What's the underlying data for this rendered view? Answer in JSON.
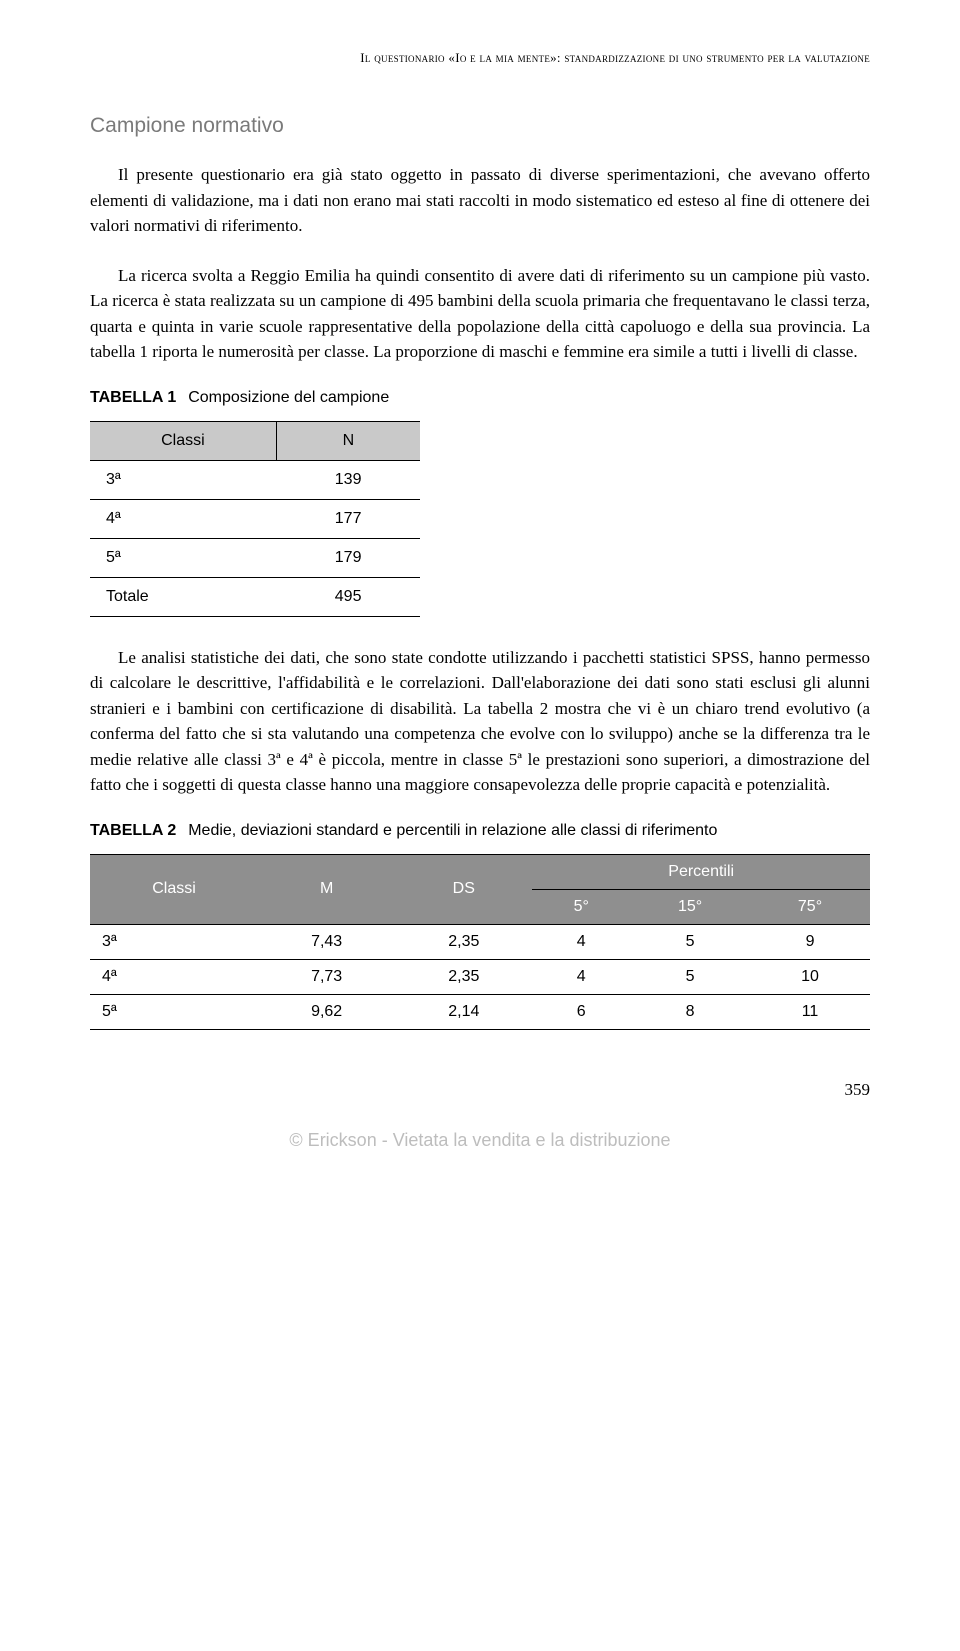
{
  "running_head": "Il questionario «Io e la mia mente»: standardizzazione di uno strumento per la valutazione",
  "section_heading": "Campione normativo",
  "para1": "Il presente questionario era già stato oggetto in passato di diverse sperimentazioni, che avevano offerto elementi di validazione, ma i dati non erano mai stati raccolti in modo sistematico ed esteso al fine di ottenere dei valori normativi di riferimento.",
  "para2": "La ricerca svolta a Reggio Emilia ha quindi consentito di avere dati di riferimento su un campione più vasto. La ricerca è stata realizzata su un campione di 495 bambini della scuola primaria che frequentavano le classi terza, quarta e quinta in varie scuole rappresentative della popolazione della città capoluogo e della sua provincia. La tabella 1 riporta le numerosità per classe. La proporzione di maschi e femmine era simile a tutti i livelli di classe.",
  "table1": {
    "label": "TABELLA 1",
    "caption": "Composizione del campione",
    "columns": [
      "Classi",
      "N"
    ],
    "rows": [
      [
        "3ª",
        "139"
      ],
      [
        "4ª",
        "177"
      ],
      [
        "5ª",
        "179"
      ],
      [
        "Totale",
        "495"
      ]
    ]
  },
  "para3": "Le analisi statistiche dei dati, che sono state condotte utilizzando i pacchetti statistici SPSS, hanno permesso di calcolare le descrittive, l'affidabilità e le correlazioni. Dall'elaborazione dei dati sono stati esclusi gli alunni stranieri e i bambini con certificazione di disabilità. La tabella 2 mostra che vi è un chiaro trend evolutivo (a conferma del fatto che si sta valutando una competenza che evolve con lo sviluppo) anche se la differenza tra le medie relative alle classi 3ª e 4ª è piccola, mentre in classe 5ª le prestazioni sono superiori, a dimostrazione del fatto che i soggetti di questa classe hanno una maggiore consapevolezza delle proprie capacità e potenzialità.",
  "table2": {
    "label": "TABELLA 2",
    "caption": "Medie, deviazioni standard e percentili in relazione alle classi di riferimento",
    "header_top": [
      "Classi",
      "M",
      "DS",
      "Percentili"
    ],
    "header_sub": [
      "5°",
      "15°",
      "75°"
    ],
    "rows": [
      [
        "3ª",
        "7,43",
        "2,35",
        "4",
        "5",
        "9"
      ],
      [
        "4ª",
        "7,73",
        "2,35",
        "4",
        "5",
        "10"
      ],
      [
        "5ª",
        "9,62",
        "2,14",
        "6",
        "8",
        "11"
      ]
    ]
  },
  "page_number": "359",
  "footer": "© Erickson - Vietata la vendita e la distribuzione"
}
